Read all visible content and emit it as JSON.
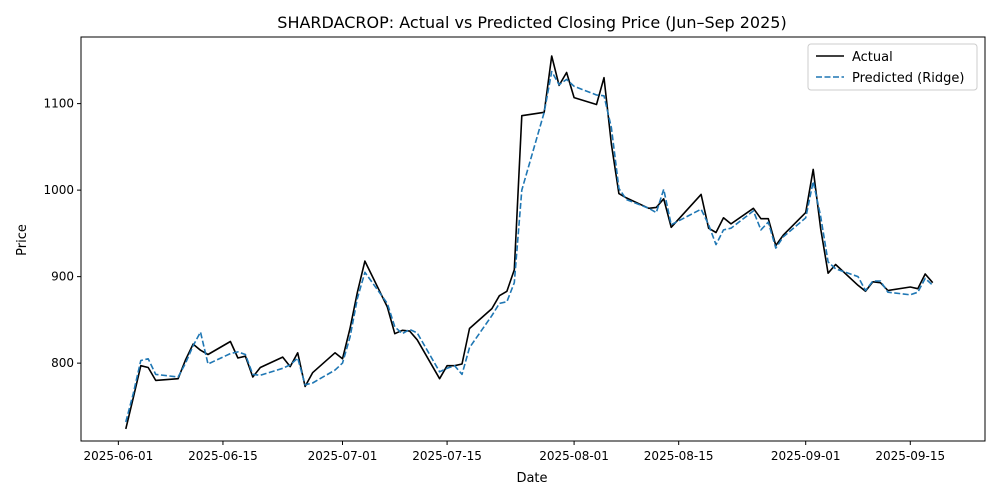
{
  "chart_data": {
    "type": "line",
    "title": "SHARDACROP: Actual vs Predicted Closing Price (Jun–Sep 2025)",
    "xlabel": "Date",
    "ylabel": "Price",
    "xlim": [
      "2025-05-27",
      "2025-09-25"
    ],
    "ylim": [
      710,
      1177
    ],
    "x_ticks": [
      "2025-06-01",
      "2025-06-15",
      "2025-07-01",
      "2025-07-15",
      "2025-08-01",
      "2025-08-15",
      "2025-09-01",
      "2025-09-15"
    ],
    "y_ticks": [
      800,
      900,
      1000,
      1100
    ],
    "grid": false,
    "legend_position": "top-right",
    "series": [
      {
        "name": "Actual",
        "color": "#000000",
        "style": "solid",
        "points": [
          [
            "2025-06-02",
            724
          ],
          [
            "2025-06-03",
            760
          ],
          [
            "2025-06-04",
            797
          ],
          [
            "2025-06-05",
            795
          ],
          [
            "2025-06-06",
            780
          ],
          [
            "2025-06-09",
            782
          ],
          [
            "2025-06-10",
            804
          ],
          [
            "2025-06-11",
            822
          ],
          [
            "2025-06-12",
            815
          ],
          [
            "2025-06-13",
            810
          ],
          [
            "2025-06-16",
            825
          ],
          [
            "2025-06-17",
            806
          ],
          [
            "2025-06-18",
            808
          ],
          [
            "2025-06-19",
            784
          ],
          [
            "2025-06-20",
            795
          ],
          [
            "2025-06-23",
            807
          ],
          [
            "2025-06-24",
            796
          ],
          [
            "2025-06-25",
            812
          ],
          [
            "2025-06-26",
            773
          ],
          [
            "2025-06-27",
            789
          ],
          [
            "2025-06-30",
            812
          ],
          [
            "2025-07-01",
            805
          ],
          [
            "2025-07-02",
            840
          ],
          [
            "2025-07-03",
            882
          ],
          [
            "2025-07-04",
            918
          ],
          [
            "2025-07-07",
            865
          ],
          [
            "2025-07-08",
            834
          ],
          [
            "2025-07-09",
            838
          ],
          [
            "2025-07-10",
            837
          ],
          [
            "2025-07-11",
            827
          ],
          [
            "2025-07-14",
            782
          ],
          [
            "2025-07-15",
            797
          ],
          [
            "2025-07-16",
            797
          ],
          [
            "2025-07-17",
            799
          ],
          [
            "2025-07-18",
            840
          ],
          [
            "2025-07-21",
            863
          ],
          [
            "2025-07-22",
            878
          ],
          [
            "2025-07-23",
            883
          ],
          [
            "2025-07-24",
            908
          ],
          [
            "2025-07-25",
            1086
          ],
          [
            "2025-07-28",
            1090
          ],
          [
            "2025-07-29",
            1155
          ],
          [
            "2025-07-30",
            1121
          ],
          [
            "2025-07-31",
            1136
          ],
          [
            "2025-08-01",
            1107
          ],
          [
            "2025-08-04",
            1099
          ],
          [
            "2025-08-05",
            1130
          ],
          [
            "2025-08-06",
            1053
          ],
          [
            "2025-08-07",
            996
          ],
          [
            "2025-08-08",
            991
          ],
          [
            "2025-08-11",
            979
          ],
          [
            "2025-08-12",
            980
          ],
          [
            "2025-08-13",
            990
          ],
          [
            "2025-08-14",
            957
          ],
          [
            "2025-08-18",
            995
          ],
          [
            "2025-08-19",
            956
          ],
          [
            "2025-08-20",
            951
          ],
          [
            "2025-08-21",
            968
          ],
          [
            "2025-08-22",
            961
          ],
          [
            "2025-08-25",
            979
          ],
          [
            "2025-08-26",
            967
          ],
          [
            "2025-08-27",
            967
          ],
          [
            "2025-08-28",
            936
          ],
          [
            "2025-08-29",
            948
          ],
          [
            "2025-09-01",
            974
          ],
          [
            "2025-09-02",
            1024
          ],
          [
            "2025-09-03",
            956
          ],
          [
            "2025-09-04",
            904
          ],
          [
            "2025-09-05",
            914
          ],
          [
            "2025-09-08",
            890
          ],
          [
            "2025-09-09",
            883
          ],
          [
            "2025-09-10",
            894
          ],
          [
            "2025-09-11",
            893
          ],
          [
            "2025-09-12",
            884
          ],
          [
            "2025-09-15",
            888
          ],
          [
            "2025-09-16",
            886
          ],
          [
            "2025-09-17",
            903
          ],
          [
            "2025-09-18",
            893
          ]
        ]
      },
      {
        "name": "Predicted (Ridge)",
        "color": "#1f77b4",
        "style": "dashed",
        "points": [
          [
            "2025-06-02",
            732
          ],
          [
            "2025-06-03",
            765
          ],
          [
            "2025-06-04",
            803
          ],
          [
            "2025-06-05",
            805
          ],
          [
            "2025-06-06",
            787
          ],
          [
            "2025-06-09",
            784
          ],
          [
            "2025-06-10",
            800
          ],
          [
            "2025-06-11",
            820
          ],
          [
            "2025-06-12",
            836
          ],
          [
            "2025-06-13",
            799
          ],
          [
            "2025-06-16",
            811
          ],
          [
            "2025-06-17",
            813
          ],
          [
            "2025-06-18",
            810
          ],
          [
            "2025-06-19",
            787
          ],
          [
            "2025-06-20",
            786
          ],
          [
            "2025-06-23",
            794
          ],
          [
            "2025-06-24",
            798
          ],
          [
            "2025-06-25",
            806
          ],
          [
            "2025-06-26",
            775
          ],
          [
            "2025-06-27",
            777
          ],
          [
            "2025-06-30",
            792
          ],
          [
            "2025-07-01",
            800
          ],
          [
            "2025-07-02",
            830
          ],
          [
            "2025-07-03",
            875
          ],
          [
            "2025-07-04",
            905
          ],
          [
            "2025-07-07",
            869
          ],
          [
            "2025-07-08",
            842
          ],
          [
            "2025-07-09",
            834
          ],
          [
            "2025-07-10",
            839
          ],
          [
            "2025-07-11",
            835
          ],
          [
            "2025-07-14",
            790
          ],
          [
            "2025-07-15",
            794
          ],
          [
            "2025-07-16",
            797
          ],
          [
            "2025-07-17",
            787
          ],
          [
            "2025-07-18",
            818
          ],
          [
            "2025-07-21",
            855
          ],
          [
            "2025-07-22",
            869
          ],
          [
            "2025-07-23",
            871
          ],
          [
            "2025-07-24",
            893
          ],
          [
            "2025-07-25",
            1000
          ],
          [
            "2025-07-28",
            1090
          ],
          [
            "2025-07-29",
            1137
          ],
          [
            "2025-07-30",
            1122
          ],
          [
            "2025-07-31",
            1128
          ],
          [
            "2025-08-01",
            1120
          ],
          [
            "2025-08-04",
            1110
          ],
          [
            "2025-08-05",
            1109
          ],
          [
            "2025-08-06",
            1072
          ],
          [
            "2025-08-07",
            1002
          ],
          [
            "2025-08-08",
            989
          ],
          [
            "2025-08-11",
            979
          ],
          [
            "2025-08-12",
            974
          ],
          [
            "2025-08-13",
            1001
          ],
          [
            "2025-08-14",
            960
          ],
          [
            "2025-08-18",
            978
          ],
          [
            "2025-08-19",
            960
          ],
          [
            "2025-08-20",
            937
          ],
          [
            "2025-08-21",
            954
          ],
          [
            "2025-08-22",
            956
          ],
          [
            "2025-08-25",
            976
          ],
          [
            "2025-08-26",
            954
          ],
          [
            "2025-08-27",
            963
          ],
          [
            "2025-08-28",
            933
          ],
          [
            "2025-08-29",
            946
          ],
          [
            "2025-09-01",
            968
          ],
          [
            "2025-09-02",
            1010
          ],
          [
            "2025-09-03",
            970
          ],
          [
            "2025-09-04",
            917
          ],
          [
            "2025-09-05",
            909
          ],
          [
            "2025-09-08",
            900
          ],
          [
            "2025-09-09",
            884
          ],
          [
            "2025-09-10",
            895
          ],
          [
            "2025-09-11",
            895
          ],
          [
            "2025-09-12",
            882
          ],
          [
            "2025-09-15",
            879
          ],
          [
            "2025-09-16",
            882
          ],
          [
            "2025-09-17",
            898
          ],
          [
            "2025-09-18",
            890
          ]
        ]
      }
    ]
  }
}
